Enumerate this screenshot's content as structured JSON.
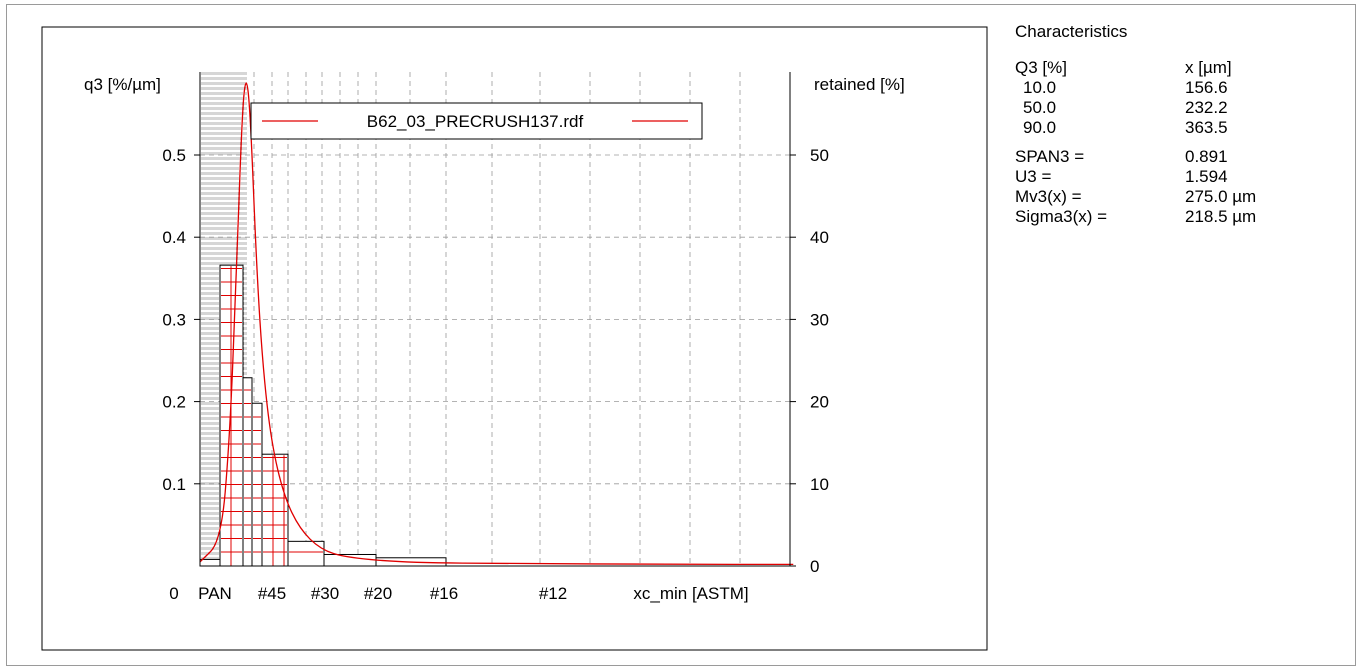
{
  "characteristics": {
    "title": "Characteristics",
    "header": {
      "col1": "Q3 [%]",
      "col2": "x [µm]"
    },
    "percentiles": [
      {
        "q": "10.0",
        "x": "156.6"
      },
      {
        "q": "50.0",
        "x": "232.2"
      },
      {
        "q": "90.0",
        "x": "363.5"
      }
    ],
    "stats": [
      {
        "label": "SPAN3 =",
        "value": "0.891"
      },
      {
        "label": "U3 =",
        "value": "1.594"
      },
      {
        "label": "Mv3(x) =",
        "value": "275.0 µm"
      },
      {
        "label": "Sigma3(x) =",
        "value": "218.5 µm"
      }
    ]
  },
  "chart_data": {
    "type": "bar",
    "ylabel_left": "q3 [%/µm]",
    "ylabel_right": "retained [%]",
    "xlabel": "xc_min [ASTM]",
    "legend": {
      "label": "B62_03_PRECRUSH137.rdf",
      "placement": "top-center"
    },
    "y_left_ticks": [
      "0.5",
      "0.4",
      "0.3",
      "0.2",
      "0.1"
    ],
    "y_left_values": [
      0.5,
      0.4,
      0.3,
      0.2,
      0.1
    ],
    "y_right_ticks": [
      "50",
      "40",
      "30",
      "20",
      "10",
      "0"
    ],
    "y_right_values": [
      50,
      40,
      30,
      20,
      10,
      0
    ],
    "ylim_left": [
      0,
      0.6
    ],
    "ylim_right": [
      0,
      60
    ],
    "x_ticks": [
      {
        "label": "0",
        "sieve": "0"
      },
      {
        "label": "PAN",
        "sieve": "PAN"
      },
      {
        "label": "#45",
        "sieve": "#45"
      },
      {
        "label": "#30",
        "sieve": "#30"
      },
      {
        "label": "#20",
        "sieve": "#20"
      },
      {
        "label": "#16",
        "sieve": "#16"
      },
      {
        "label": "#12",
        "sieve": "#12"
      }
    ],
    "bars_retained_pct": [
      {
        "class": "<PAN",
        "value": 0.8
      },
      {
        "class": "PAN-#60",
        "value": 36.6
      },
      {
        "class": "#60-#50",
        "value": 22.9
      },
      {
        "class": "#50-#45",
        "value": 19.8
      },
      {
        "class": "#45-#40",
        "value": 13.6
      },
      {
        "class": "#40-#30",
        "value": 3.0
      },
      {
        "class": "#30-#25",
        "value": 1.4
      },
      {
        "class": "#25-#16",
        "value": 1.0
      }
    ],
    "density_curve_q3": [
      {
        "x": 0,
        "y": 0.005
      },
      {
        "x": 20,
        "y": 0.03
      },
      {
        "x": 28,
        "y": 0.15
      },
      {
        "x": 34,
        "y": 0.33
      },
      {
        "x": 40,
        "y": 0.55
      },
      {
        "x": 44,
        "y": 0.6
      },
      {
        "x": 48,
        "y": 0.55
      },
      {
        "x": 54,
        "y": 0.36
      },
      {
        "x": 60,
        "y": 0.24
      },
      {
        "x": 68,
        "y": 0.15
      },
      {
        "x": 80,
        "y": 0.085
      },
      {
        "x": 95,
        "y": 0.045
      },
      {
        "x": 115,
        "y": 0.02
      },
      {
        "x": 140,
        "y": 0.01
      },
      {
        "x": 200,
        "y": 0.004
      },
      {
        "x": 300,
        "y": 0.003
      },
      {
        "x": 450,
        "y": 0.002
      },
      {
        "x": 565,
        "y": 0.002
      }
    ],
    "colors": {
      "curve": "#e00000",
      "bar_edge": "#000000",
      "bar_hatch": "#e00000",
      "grid": "#9a9a9a"
    }
  }
}
